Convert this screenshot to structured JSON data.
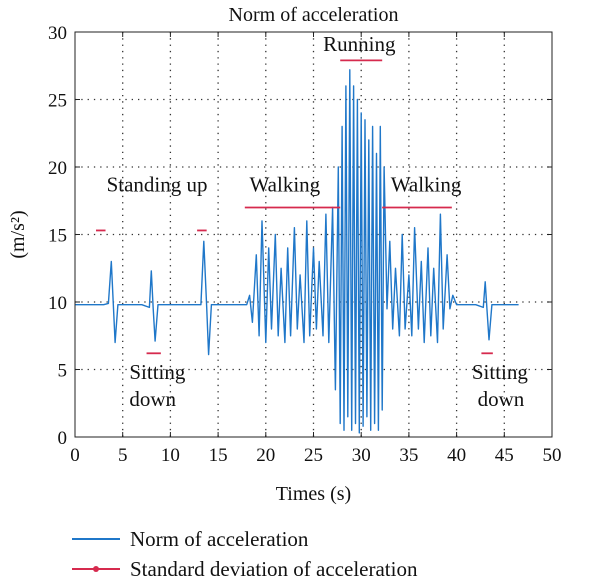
{
  "chart_data": {
    "type": "line",
    "title": "Norm of acceleration",
    "xlabel": "Times (s)",
    "ylabel": "(m/s²)",
    "xlim": [
      0,
      50
    ],
    "ylim": [
      0,
      30
    ],
    "xticks": [
      0,
      5,
      10,
      15,
      20,
      25,
      30,
      35,
      40,
      45,
      50
    ],
    "yticks": [
      0,
      5,
      10,
      15,
      20,
      25,
      30
    ],
    "grid": "dotted",
    "legend_position": "bottom",
    "series": [
      {
        "name": "Norm of acceleration",
        "color": "#1f77c9",
        "x": [
          0,
          1,
          2,
          3,
          3.5,
          3.8,
          4.0,
          4.2,
          4.5,
          5,
          6,
          7,
          7.8,
          8.0,
          8.2,
          8.4,
          8.7,
          9,
          10,
          11,
          12,
          13.2,
          13.5,
          13.8,
          14.0,
          14.3,
          15,
          16,
          17,
          18,
          18.3,
          18.6,
          19.0,
          19.3,
          19.6,
          20.0,
          20.3,
          20.6,
          21.0,
          21.3,
          21.6,
          22.0,
          22.3,
          22.6,
          23.0,
          23.3,
          23.6,
          24.0,
          24.3,
          24.6,
          25.0,
          25.3,
          25.6,
          26.0,
          26.3,
          26.6,
          27.0,
          27.3,
          27.6,
          27.8,
          28.0,
          28.2,
          28.4,
          28.6,
          28.8,
          29.0,
          29.2,
          29.4,
          29.6,
          29.8,
          30.0,
          30.2,
          30.4,
          30.6,
          30.8,
          31.0,
          31.2,
          31.4,
          31.6,
          31.8,
          32.0,
          32.2,
          32.4,
          32.7,
          33.0,
          33.3,
          33.6,
          34.0,
          34.3,
          34.6,
          35.0,
          35.3,
          35.6,
          36.0,
          36.3,
          36.6,
          37.0,
          37.3,
          37.6,
          38.0,
          38.3,
          38.6,
          39.0,
          39.3,
          39.6,
          40.0,
          41,
          42,
          42.8,
          43.0,
          43.2,
          43.4,
          43.7,
          44,
          45,
          46,
          46.5
        ],
        "y": [
          9.8,
          9.8,
          9.8,
          9.8,
          9.9,
          13.0,
          10.0,
          7.0,
          9.8,
          9.8,
          9.8,
          9.8,
          9.6,
          12.3,
          9.5,
          7.1,
          9.8,
          9.8,
          9.8,
          9.8,
          9.8,
          9.8,
          14.5,
          9.6,
          6.1,
          9.8,
          9.8,
          9.8,
          9.8,
          9.8,
          10.5,
          8.5,
          13.5,
          7.5,
          16.0,
          7.0,
          14.0,
          8.0,
          15.0,
          7.5,
          12.5,
          7.0,
          14.0,
          7.5,
          15.5,
          8.0,
          12.0,
          7.0,
          16.0,
          7.5,
          14.0,
          8.0,
          13.0,
          7.5,
          16.5,
          7.0,
          17.0,
          3.5,
          20.0,
          1.0,
          23.0,
          0.5,
          26.0,
          1.5,
          27.2,
          0.5,
          26.0,
          1.0,
          25.0,
          0.3,
          24.0,
          0.8,
          23.5,
          1.5,
          22.0,
          0.5,
          23.0,
          1.0,
          21.0,
          0.5,
          23.0,
          2.0,
          20.0,
          9.5,
          14.5,
          8.0,
          12.5,
          7.5,
          15.0,
          8.0,
          12.0,
          7.5,
          15.5,
          8.0,
          13.0,
          7.0,
          14.0,
          7.5,
          12.5,
          7.0,
          16.5,
          8.0,
          13.5,
          9.5,
          10.5,
          9.8,
          9.8,
          9.8,
          9.6,
          11.5,
          9.3,
          7.2,
          9.8,
          9.8,
          9.8,
          9.8,
          9.8
        ]
      },
      {
        "name": "Standard deviation of acceleration",
        "color": "#d62a4e",
        "segments": [
          {
            "x": [
              2.2,
              3.2
            ],
            "y": 15.3
          },
          {
            "x": [
              7.5,
              9.0
            ],
            "y": 6.2
          },
          {
            "x": [
              12.8,
              13.8
            ],
            "y": 15.3
          },
          {
            "x": [
              17.8,
              27.8
            ],
            "y": 17.0
          },
          {
            "x": [
              27.8,
              32.2
            ],
            "y": 27.9
          },
          {
            "x": [
              32.2,
              39.5
            ],
            "y": 17.0
          },
          {
            "x": [
              42.6,
              43.8
            ],
            "y": 6.2
          }
        ]
      }
    ],
    "annotations": [
      {
        "text": "Standing up",
        "x": 8.6,
        "y": 18.2,
        "align": "middle"
      },
      {
        "text": "Sitting",
        "x": 5.7,
        "y": 4.3,
        "align": "start"
      },
      {
        "text": "down",
        "x": 5.7,
        "y": 2.3,
        "align": "start"
      },
      {
        "text": "Walking",
        "x": 22.0,
        "y": 18.2,
        "align": "middle"
      },
      {
        "text": "Running",
        "x": 29.8,
        "y": 28.6,
        "align": "middle"
      },
      {
        "text": "Walking",
        "x": 36.8,
        "y": 18.2,
        "align": "middle"
      },
      {
        "text": "Sitting",
        "x": 41.6,
        "y": 4.3,
        "align": "start"
      },
      {
        "text": "down",
        "x": 42.2,
        "y": 2.3,
        "align": "start"
      }
    ]
  }
}
